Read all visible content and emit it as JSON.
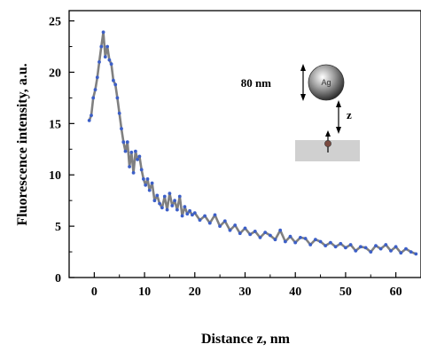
{
  "chart_data": {
    "type": "line",
    "xlabel": "Distance z, nm",
    "ylabel": "Fluorescence intensity, a.u.",
    "xlim": [
      -5,
      65
    ],
    "ylim": [
      0,
      26
    ],
    "xticks": [
      0,
      10,
      20,
      30,
      40,
      50,
      60
    ],
    "yticks": [
      0,
      5,
      10,
      15,
      20,
      25
    ],
    "grid": false,
    "series": [
      {
        "line_color": "#808080",
        "marker_color": "#3c5fc8",
        "x": [
          -1,
          -0.6,
          -0.2,
          0.2,
          0.6,
          1,
          1.4,
          1.8,
          2.2,
          2.6,
          3,
          3.4,
          3.8,
          4.2,
          4.6,
          5,
          5.4,
          5.8,
          6.2,
          6.6,
          7,
          7.4,
          7.8,
          8.2,
          8.6,
          9,
          9.4,
          9.8,
          10.2,
          10.6,
          11,
          11.5,
          12,
          12.5,
          13,
          13.5,
          14,
          14.5,
          15,
          15.5,
          16,
          16.5,
          17,
          17.5,
          18,
          18.5,
          19,
          19.5,
          20,
          21,
          22,
          23,
          24,
          25,
          26,
          27,
          28,
          29,
          30,
          31,
          32,
          33,
          34,
          35,
          36,
          37,
          38,
          39,
          40,
          41,
          42,
          43,
          44,
          45,
          46,
          47,
          48,
          49,
          50,
          51,
          52,
          53,
          54,
          55,
          56,
          57,
          58,
          59,
          60,
          61,
          62,
          63,
          64
        ],
        "y": [
          15.3,
          15.8,
          17.5,
          18.3,
          19.5,
          21,
          22.5,
          23.9,
          21.5,
          22.5,
          21.2,
          20.8,
          19.2,
          18.8,
          17.5,
          16,
          14.5,
          13.2,
          12.3,
          13.2,
          10.8,
          12.2,
          10.2,
          12.3,
          11.5,
          11.8,
          10.5,
          9.6,
          9.0,
          9.6,
          8.5,
          9.2,
          7.5,
          8.0,
          7.2,
          6.8,
          7.9,
          6.6,
          8.2,
          7.0,
          7.5,
          6.6,
          7.9,
          6.0,
          6.9,
          6.2,
          6.5,
          6.1,
          6.3,
          5.6,
          6.0,
          5.3,
          6.1,
          5.0,
          5.5,
          4.6,
          5.1,
          4.3,
          4.8,
          4.2,
          4.5,
          3.9,
          4.4,
          4.1,
          3.7,
          4.6,
          3.5,
          4.0,
          3.4,
          3.9,
          3.8,
          3.2,
          3.7,
          3.5,
          3.1,
          3.4,
          3.0,
          3.3,
          2.9,
          3.2,
          2.6,
          3.0,
          2.9,
          2.5,
          3.1,
          2.8,
          3.2,
          2.6,
          3.0,
          2.4,
          2.8,
          2.5,
          2.3
        ]
      }
    ],
    "inset": {
      "size_label": "80 nm",
      "sphere_label": "Ag",
      "distance_label": "z"
    }
  }
}
